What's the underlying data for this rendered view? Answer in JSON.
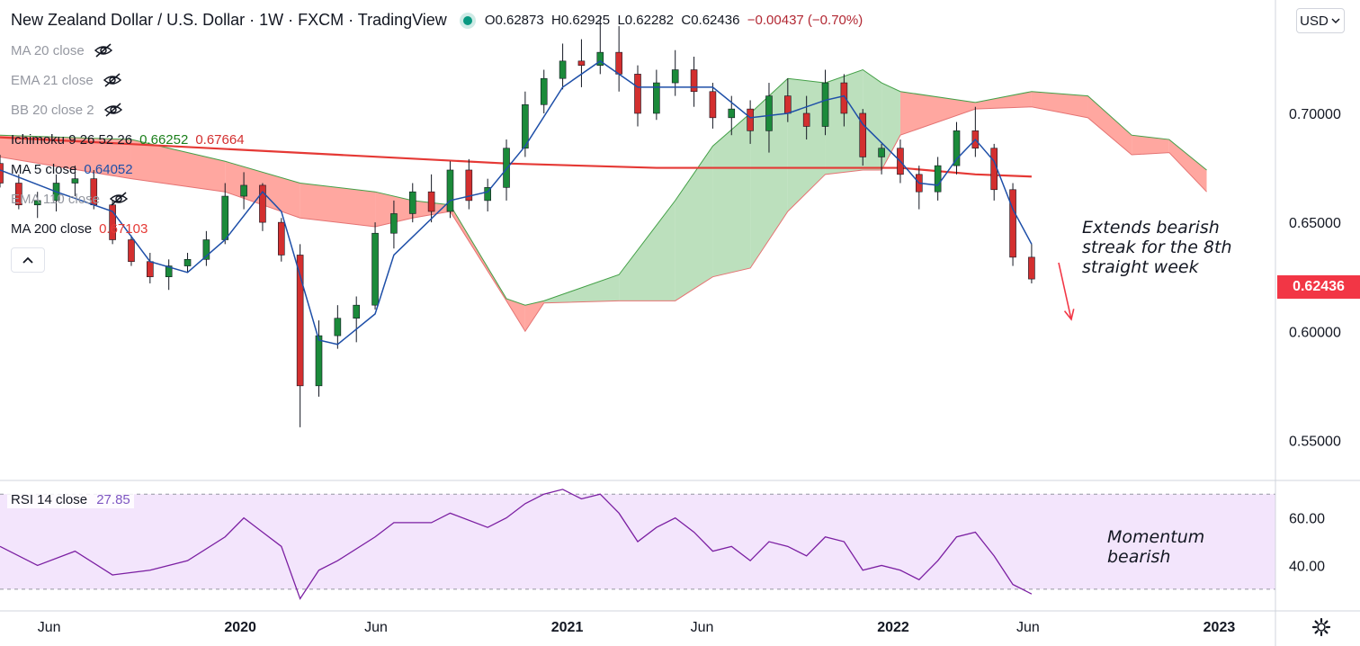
{
  "header": {
    "title": "New Zealand Dollar / U.S. Dollar · 1W · FXCM · TradingView",
    "open": "O0.62873",
    "high": "H0.62925",
    "low": "L0.62282",
    "close": "C0.62436",
    "change": "−0.00437 (−0.70%)"
  },
  "indicators": [
    {
      "label": "MA 20 close",
      "value": "",
      "color": "#9598a1",
      "hidden": true
    },
    {
      "label": "EMA 21 close",
      "value": "",
      "color": "#9598a1",
      "hidden": true
    },
    {
      "label": "BB 20 close 2",
      "value": "",
      "color": "#9598a1",
      "hidden": true
    },
    {
      "label": "Ichimoku 9 26 52 26",
      "value": "0.66252",
      "value2": "0.67664",
      "color": "#131722",
      "hidden": false
    },
    {
      "label": "MA 5 close",
      "value": "0.64052",
      "color": "#131722",
      "hidden": false
    },
    {
      "label": "EMA 110 close",
      "value": "",
      "color": "#9598a1",
      "hidden": true
    },
    {
      "label": "MA 200 close",
      "value": "0.67103",
      "color": "#131722",
      "hidden": false
    }
  ],
  "colors": {
    "up": "#26a69a",
    "down": "#ef5350",
    "candle_up": "#1b8a3a",
    "candle_down": "#d32f2f",
    "ma5": "#1e4fa8",
    "ma200": "#e53935",
    "cloud_bull": "#a5d6a7",
    "cloud_bear": "#ff8a80",
    "rsi": "#7b1fa2",
    "rsi_band": "#f3e5fc",
    "ichimoku_green": "#1b7f1b",
    "ichimoku_red": "#d32f2f",
    "ma5_text": "#1e4fa8",
    "ma200_text": "#e53935"
  },
  "currency_button": "USD",
  "last_price": "0.62436",
  "annotations": {
    "price": [
      "Extends bearish",
      "streak for the 8th",
      "straight week"
    ],
    "rsi": [
      "Momentum",
      "bearish"
    ]
  },
  "rsi_panel": {
    "label": "RSI 14 close",
    "value": "27.85"
  },
  "chart_data": {
    "type": "candlestick",
    "instrument": "NZD/USD",
    "timeframe": "1W",
    "price_axis": {
      "ticks": [
        0.7,
        0.65,
        0.6,
        0.55
      ],
      "tick_labels": [
        "0.70000",
        "0.65000",
        "0.60000",
        "0.55000"
      ],
      "range": [
        0.532,
        0.752
      ]
    },
    "time_axis": {
      "labels": [
        "Jun",
        "2020",
        "Jun",
        "2021",
        "Jun",
        "2022",
        "Jun",
        "2023"
      ],
      "range": [
        "2019-04-07",
        "2023-03-05"
      ]
    },
    "ohlc": [
      [
        "2019-04-07",
        0.677,
        0.681,
        0.666,
        0.668
      ],
      [
        "2019-04-28",
        0.668,
        0.672,
        0.656,
        0.658
      ],
      [
        "2019-05-19",
        0.658,
        0.664,
        0.652,
        0.66
      ],
      [
        "2019-06-09",
        0.66,
        0.672,
        0.655,
        0.668
      ],
      [
        "2019-06-30",
        0.668,
        0.676,
        0.662,
        0.67
      ],
      [
        "2019-07-21",
        0.67,
        0.674,
        0.656,
        0.658
      ],
      [
        "2019-08-11",
        0.658,
        0.66,
        0.64,
        0.642
      ],
      [
        "2019-09-01",
        0.642,
        0.644,
        0.63,
        0.632
      ],
      [
        "2019-09-22",
        0.632,
        0.636,
        0.622,
        0.625
      ],
      [
        "2019-10-13",
        0.625,
        0.633,
        0.619,
        0.63
      ],
      [
        "2019-11-03",
        0.63,
        0.636,
        0.627,
        0.633
      ],
      [
        "2019-11-24",
        0.633,
        0.646,
        0.63,
        0.642
      ],
      [
        "2019-12-15",
        0.642,
        0.668,
        0.64,
        0.662
      ],
      [
        "2020-01-05",
        0.662,
        0.673,
        0.656,
        0.667
      ],
      [
        "2020-01-26",
        0.667,
        0.668,
        0.646,
        0.65
      ],
      [
        "2020-02-16",
        0.65,
        0.652,
        0.632,
        0.635
      ],
      [
        "2020-03-08",
        0.635,
        0.64,
        0.556,
        0.575
      ],
      [
        "2020-03-29",
        0.575,
        0.605,
        0.57,
        0.598
      ],
      [
        "2020-04-19",
        0.598,
        0.612,
        0.592,
        0.606
      ],
      [
        "2020-05-10",
        0.606,
        0.616,
        0.595,
        0.612
      ],
      [
        "2020-05-31",
        0.612,
        0.65,
        0.61,
        0.645
      ],
      [
        "2020-06-21",
        0.645,
        0.66,
        0.638,
        0.654
      ],
      [
        "2020-07-12",
        0.654,
        0.668,
        0.65,
        0.664
      ],
      [
        "2020-08-02",
        0.664,
        0.672,
        0.65,
        0.655
      ],
      [
        "2020-08-23",
        0.655,
        0.678,
        0.652,
        0.674
      ],
      [
        "2020-09-13",
        0.674,
        0.679,
        0.656,
        0.66
      ],
      [
        "2020-10-04",
        0.66,
        0.67,
        0.655,
        0.666
      ],
      [
        "2020-10-25",
        0.666,
        0.688,
        0.66,
        0.684
      ],
      [
        "2020-11-15",
        0.684,
        0.71,
        0.68,
        0.704
      ],
      [
        "2020-12-06",
        0.704,
        0.72,
        0.7,
        0.716
      ],
      [
        "2020-12-27",
        0.716,
        0.732,
        0.711,
        0.724
      ],
      [
        "2021-01-17",
        0.724,
        0.734,
        0.712,
        0.722
      ],
      [
        "2021-02-07",
        0.722,
        0.744,
        0.718,
        0.728
      ],
      [
        "2021-02-28",
        0.728,
        0.74,
        0.71,
        0.718
      ],
      [
        "2021-03-21",
        0.718,
        0.722,
        0.694,
        0.7
      ],
      [
        "2021-04-11",
        0.7,
        0.72,
        0.697,
        0.714
      ],
      [
        "2021-05-02",
        0.714,
        0.729,
        0.708,
        0.72
      ],
      [
        "2021-05-23",
        0.72,
        0.726,
        0.703,
        0.71
      ],
      [
        "2021-06-13",
        0.71,
        0.714,
        0.693,
        0.698
      ],
      [
        "2021-07-04",
        0.698,
        0.708,
        0.69,
        0.702
      ],
      [
        "2021-07-25",
        0.702,
        0.706,
        0.686,
        0.692
      ],
      [
        "2021-08-15",
        0.692,
        0.714,
        0.682,
        0.708
      ],
      [
        "2021-09-05",
        0.708,
        0.716,
        0.696,
        0.7
      ],
      [
        "2021-09-26",
        0.7,
        0.708,
        0.688,
        0.694
      ],
      [
        "2021-10-17",
        0.694,
        0.72,
        0.69,
        0.714
      ],
      [
        "2021-11-07",
        0.714,
        0.718,
        0.694,
        0.7
      ],
      [
        "2021-11-28",
        0.7,
        0.702,
        0.676,
        0.68
      ],
      [
        "2021-12-19",
        0.68,
        0.686,
        0.672,
        0.684
      ],
      [
        "2022-01-09",
        0.684,
        0.688,
        0.668,
        0.672
      ],
      [
        "2022-01-30",
        0.672,
        0.676,
        0.656,
        0.664
      ],
      [
        "2022-02-20",
        0.664,
        0.68,
        0.66,
        0.676
      ],
      [
        "2022-03-13",
        0.676,
        0.696,
        0.672,
        0.692
      ],
      [
        "2022-04-03",
        0.692,
        0.703,
        0.68,
        0.684
      ],
      [
        "2022-04-24",
        0.684,
        0.686,
        0.66,
        0.665
      ],
      [
        "2022-05-15",
        0.665,
        0.668,
        0.63,
        0.634
      ],
      [
        "2022-06-05",
        0.634,
        0.64,
        0.622,
        0.624
      ]
    ],
    "ma5": [
      [
        "2019-04-07",
        0.674
      ],
      [
        "2019-06-09",
        0.664
      ],
      [
        "2019-08-11",
        0.655
      ],
      [
        "2019-09-22",
        0.632
      ],
      [
        "2019-11-03",
        0.627
      ],
      [
        "2019-12-15",
        0.642
      ],
      [
        "2020-01-26",
        0.664
      ],
      [
        "2020-02-16",
        0.655
      ],
      [
        "2020-03-29",
        0.596
      ],
      [
        "2020-04-19",
        0.594
      ],
      [
        "2020-05-31",
        0.608
      ],
      [
        "2020-06-21",
        0.635
      ],
      [
        "2020-08-23",
        0.66
      ],
      [
        "2020-10-04",
        0.664
      ],
      [
        "2020-11-15",
        0.685
      ],
      [
        "2020-12-27",
        0.712
      ],
      [
        "2021-02-07",
        0.724
      ],
      [
        "2021-03-21",
        0.712
      ],
      [
        "2021-05-02",
        0.712
      ],
      [
        "2021-06-13",
        0.712
      ],
      [
        "2021-07-25",
        0.698
      ],
      [
        "2021-09-05",
        0.7
      ],
      [
        "2021-10-17",
        0.706
      ],
      [
        "2021-11-07",
        0.708
      ],
      [
        "2021-11-28",
        0.695
      ],
      [
        "2022-01-09",
        0.678
      ],
      [
        "2022-01-30",
        0.668
      ],
      [
        "2022-02-20",
        0.667
      ],
      [
        "2022-03-13",
        0.679
      ],
      [
        "2022-04-03",
        0.688
      ],
      [
        "2022-04-24",
        0.678
      ],
      [
        "2022-05-15",
        0.656
      ],
      [
        "2022-06-05",
        0.64
      ]
    ],
    "ma200": [
      [
        "2019-04-07",
        0.689
      ],
      [
        "2019-10-13",
        0.685
      ],
      [
        "2020-04-19",
        0.681
      ],
      [
        "2020-10-25",
        0.677
      ],
      [
        "2021-04-11",
        0.675
      ],
      [
        "2021-10-17",
        0.675
      ],
      [
        "2022-01-09",
        0.675
      ],
      [
        "2022-04-03",
        0.672
      ],
      [
        "2022-06-05",
        0.671
      ]
    ],
    "cloud": [
      [
        "2019-04-07",
        0.69,
        0.68
      ],
      [
        "2019-09-01",
        0.688,
        0.67
      ],
      [
        "2019-12-15",
        0.678,
        0.664
      ],
      [
        "2020-03-08",
        0.668,
        0.652
      ],
      [
        "2020-05-31",
        0.664,
        0.648
      ],
      [
        "2020-07-12",
        0.66,
        0.652
      ],
      [
        "2020-08-23",
        0.658,
        0.655
      ],
      [
        "2020-10-25",
        0.615,
        0.614
      ],
      [
        "2020-11-15",
        0.612,
        0.6
      ],
      [
        "2020-12-06",
        0.614,
        0.613
      ],
      [
        "2021-02-28",
        0.626,
        0.614
      ],
      [
        "2021-05-02",
        0.66,
        0.614
      ],
      [
        "2021-06-13",
        0.685,
        0.625
      ],
      [
        "2021-07-25",
        0.7,
        0.629
      ],
      [
        "2021-09-05",
        0.716,
        0.655
      ],
      [
        "2021-10-17",
        0.714,
        0.672
      ],
      [
        "2021-11-28",
        0.72,
        0.674
      ],
      [
        "2021-12-19",
        0.714,
        0.674
      ],
      [
        "2022-01-09",
        0.71,
        0.69
      ],
      [
        "2022-04-03",
        0.705,
        0.702
      ],
      [
        "2022-06-05",
        0.71,
        0.703
      ],
      [
        "2022-08-07",
        0.708,
        0.698
      ],
      [
        "2022-09-25",
        0.69,
        0.681
      ],
      [
        "2022-11-06",
        0.688,
        0.682
      ],
      [
        "2022-12-18",
        0.674,
        0.664
      ]
    ],
    "rsi": {
      "axis_ticks": [
        60.0,
        40.0
      ],
      "axis_labels": [
        "60.00",
        "40.00"
      ],
      "band": [
        30,
        70
      ],
      "values": [
        [
          "2019-04-07",
          48
        ],
        [
          "2019-05-19",
          40
        ],
        [
          "2019-06-30",
          46
        ],
        [
          "2019-08-11",
          36
        ],
        [
          "2019-09-22",
          38
        ],
        [
          "2019-11-03",
          42
        ],
        [
          "2019-12-15",
          52
        ],
        [
          "2020-01-05",
          60
        ],
        [
          "2020-01-26",
          54
        ],
        [
          "2020-02-16",
          48
        ],
        [
          "2020-03-08",
          26
        ],
        [
          "2020-03-29",
          38
        ],
        [
          "2020-04-19",
          42
        ],
        [
          "2020-05-31",
          52
        ],
        [
          "2020-06-21",
          58
        ],
        [
          "2020-08-02",
          58
        ],
        [
          "2020-08-23",
          62
        ],
        [
          "2020-10-04",
          56
        ],
        [
          "2020-10-25",
          60
        ],
        [
          "2020-11-15",
          66
        ],
        [
          "2020-12-06",
          70
        ],
        [
          "2020-12-27",
          72
        ],
        [
          "2021-01-17",
          68
        ],
        [
          "2021-02-07",
          70
        ],
        [
          "2021-02-28",
          62
        ],
        [
          "2021-03-21",
          50
        ],
        [
          "2021-04-11",
          56
        ],
        [
          "2021-05-02",
          60
        ],
        [
          "2021-05-23",
          54
        ],
        [
          "2021-06-13",
          46
        ],
        [
          "2021-07-04",
          48
        ],
        [
          "2021-07-25",
          42
        ],
        [
          "2021-08-15",
          50
        ],
        [
          "2021-09-05",
          48
        ],
        [
          "2021-09-26",
          44
        ],
        [
          "2021-10-17",
          52
        ],
        [
          "2021-11-07",
          50
        ],
        [
          "2021-11-28",
          38
        ],
        [
          "2021-12-19",
          40
        ],
        [
          "2022-01-09",
          38
        ],
        [
          "2022-01-30",
          34
        ],
        [
          "2022-02-20",
          42
        ],
        [
          "2022-03-13",
          52
        ],
        [
          "2022-04-03",
          54
        ],
        [
          "2022-04-24",
          44
        ],
        [
          "2022-05-15",
          32
        ],
        [
          "2022-06-05",
          28
        ]
      ]
    }
  }
}
